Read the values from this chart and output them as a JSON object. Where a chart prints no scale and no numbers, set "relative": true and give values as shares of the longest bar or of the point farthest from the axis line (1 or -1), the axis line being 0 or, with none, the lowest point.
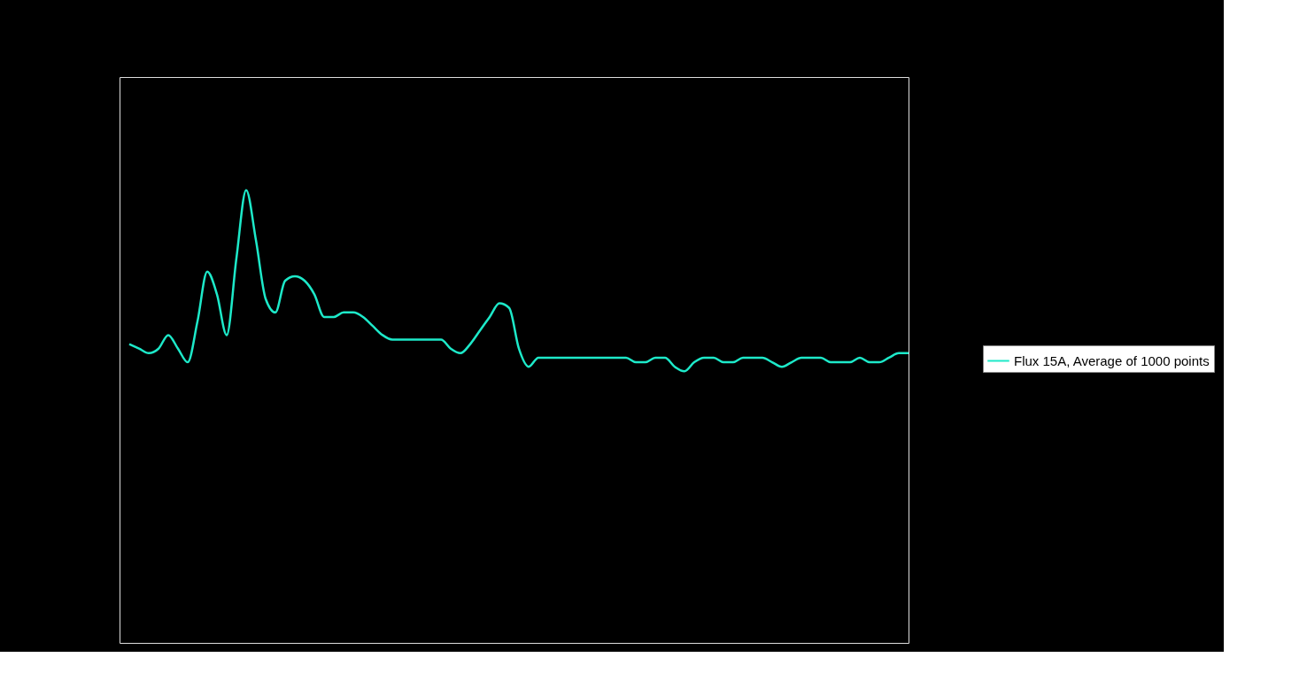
{
  "chart_data": {
    "type": "line",
    "relative": true,
    "legend": "right",
    "grid": false,
    "marker": "none",
    "line_style": "solid",
    "categories": [
      null,
      null,
      null,
      null,
      null,
      null,
      null,
      null,
      null,
      null,
      null,
      null,
      null,
      null,
      null,
      null,
      null,
      null,
      null,
      null,
      null,
      null,
      null,
      null,
      null,
      null,
      null,
      null,
      null,
      null,
      null,
      null,
      null,
      null,
      null,
      null,
      null,
      null,
      null,
      null,
      null,
      null,
      null,
      null,
      null,
      null,
      null,
      null,
      null,
      null,
      null,
      null,
      null,
      null,
      null,
      null,
      null,
      null,
      null,
      null,
      null,
      null,
      null,
      null,
      null,
      null,
      null,
      null,
      null,
      null,
      null,
      null,
      null,
      null,
      null,
      null,
      null,
      null,
      null,
      null,
      null
    ],
    "series": [
      {
        "name": "Flux 15A, Average of 1000 points",
        "color": "#1de9c9",
        "values": [
          0.66,
          0.65,
          0.64,
          0.65,
          0.68,
          0.65,
          0.62,
          0.71,
          0.82,
          0.77,
          0.68,
          0.85,
          1.0,
          0.89,
          0.76,
          0.73,
          0.8,
          0.81,
          0.8,
          0.77,
          0.72,
          0.72,
          0.73,
          0.73,
          0.72,
          0.7,
          0.68,
          0.67,
          0.67,
          0.67,
          0.67,
          0.67,
          0.67,
          0.65,
          0.64,
          0.66,
          0.69,
          0.72,
          0.75,
          0.74,
          0.65,
          0.61,
          0.63,
          0.63,
          0.63,
          0.63,
          0.63,
          0.63,
          0.63,
          0.63,
          0.63,
          0.63,
          0.62,
          0.62,
          0.63,
          0.63,
          0.61,
          0.6,
          0.62,
          0.63,
          0.63,
          0.62,
          0.62,
          0.63,
          0.63,
          0.63,
          0.62,
          0.61,
          0.62,
          0.63,
          0.63,
          0.63,
          0.62,
          0.62,
          0.62,
          0.63,
          0.62,
          0.62,
          0.63,
          0.64,
          0.64
        ]
      }
    ]
  }
}
